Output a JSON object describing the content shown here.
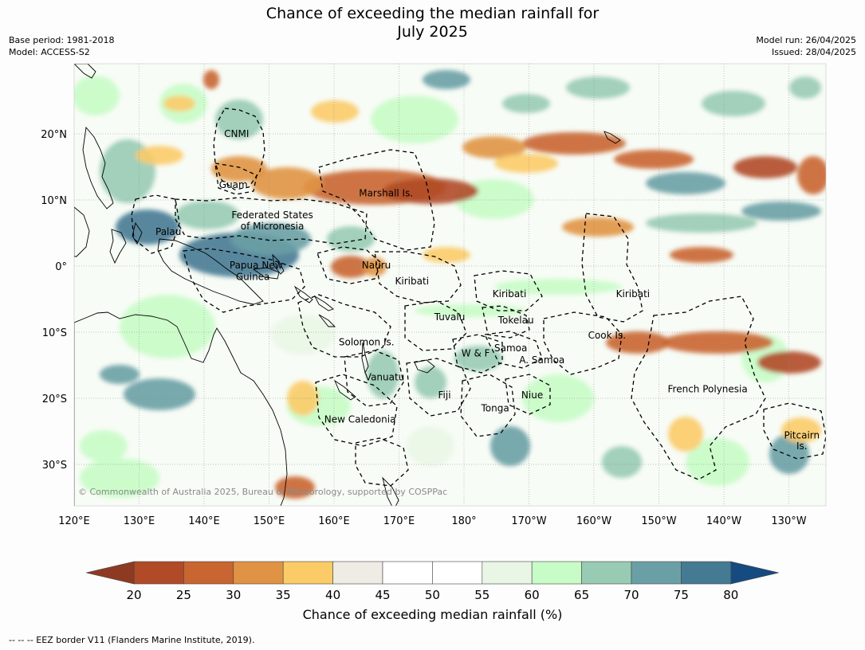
{
  "header": {
    "title_line1": "Chance of exceeding the median rainfall for",
    "title_line2": "July 2025",
    "base_period": "Base period: 1981-2018",
    "model": "Model: ACCESS-S2",
    "model_run": "Model run: 26/04/2025",
    "issued": "Issued: 28/04/2025"
  },
  "map": {
    "lon_labels": [
      "120°E",
      "130°E",
      "140°E",
      "150°E",
      "160°E",
      "170°E",
      "180°",
      "170°W",
      "160°W",
      "150°W",
      "140°W",
      "130°W"
    ],
    "lat_labels": [
      "20°N",
      "10°N",
      "0°",
      "10°S",
      "20°S",
      "30°S"
    ],
    "copyright": "© Commonwealth of Australia 2025, Bureau of Meteorology, supported by COSPPac",
    "region_labels": [
      {
        "id": "cnmi",
        "text": "CNMI",
        "lon": 145,
        "lat": 20
      },
      {
        "id": "guam",
        "text": "Guam",
        "lon": 144.5,
        "lat": 12.3
      },
      {
        "id": "marshall",
        "text": "Marshall Is.",
        "lon": 168,
        "lat": 11
      },
      {
        "id": "fsm1",
        "text": "Federated States",
        "lon": 150.5,
        "lat": 7.7
      },
      {
        "id": "fsm2",
        "text": "of Micronesia",
        "lon": 150.5,
        "lat": 6
      },
      {
        "id": "palau",
        "text": "Palau",
        "lon": 134.5,
        "lat": 5.2
      },
      {
        "id": "png1",
        "text": "Papua New",
        "lon": 148,
        "lat": 0.1
      },
      {
        "id": "png2",
        "text": "Guinea",
        "lon": 147.5,
        "lat": -1.6
      },
      {
        "id": "nauru",
        "text": "Nauru",
        "lon": 166.5,
        "lat": 0.1
      },
      {
        "id": "kiribati-w",
        "text": "Kiribati",
        "lon": 172,
        "lat": -2.3
      },
      {
        "id": "kiribati-c",
        "text": "Kiribati",
        "lon": -173,
        "lat": -4.2
      },
      {
        "id": "kiribati-e",
        "text": "Kiribati",
        "lon": -154,
        "lat": -4.2
      },
      {
        "id": "tuvalu",
        "text": "Tuvalu",
        "lon": 177.8,
        "lat": -7.7
      },
      {
        "id": "tokelau",
        "text": "Tokelau",
        "lon": -172,
        "lat": -8.2
      },
      {
        "id": "cook",
        "text": "Cook Is.",
        "lon": -158,
        "lat": -10.5
      },
      {
        "id": "solomon",
        "text": "Solomon Is.",
        "lon": 165,
        "lat": -11.5
      },
      {
        "id": "samoa",
        "text": "Samoa",
        "lon": -172.8,
        "lat": -12.4
      },
      {
        "id": "wf",
        "text": "W & F",
        "lon": -178.2,
        "lat": -13.2
      },
      {
        "id": "asamoa",
        "text": "A. Samoa",
        "lon": -168,
        "lat": -14.2
      },
      {
        "id": "vanuatu",
        "text": "Vanuatu",
        "lon": 167.8,
        "lat": -16.8
      },
      {
        "id": "frpoly",
        "text": "French Polynesia",
        "lon": -142.5,
        "lat": -18.6
      },
      {
        "id": "fiji",
        "text": "Fiji",
        "lon": 177,
        "lat": -19.5
      },
      {
        "id": "niue",
        "text": "Niue",
        "lon": -169.5,
        "lat": -19.5
      },
      {
        "id": "tonga",
        "text": "Tonga",
        "lon": -175.2,
        "lat": -21.5
      },
      {
        "id": "newcal",
        "text": "New Caledonia",
        "lon": 164,
        "lat": -23.2
      },
      {
        "id": "pitcairn1",
        "text": "Pitcairn",
        "lon": -128,
        "lat": -25.6
      },
      {
        "id": "pitcairn2",
        "text": "Is.",
        "lon": -128,
        "lat": -27.2
      }
    ]
  },
  "colorbar": {
    "ticks": [
      "20",
      "25",
      "30",
      "35",
      "40",
      "45",
      "50",
      "55",
      "60",
      "65",
      "70",
      "75",
      "80"
    ],
    "label": "Chance of exceeding median rainfall (%)",
    "under_color": "#8e3a22",
    "over_color": "#154b80",
    "colors": [
      "#b04a27",
      "#c96530",
      "#e09344",
      "#fbcb68",
      "#efebe5",
      "#ffffff",
      "#ffffff",
      "#e9f6e6",
      "#c8fcc6",
      "#98cbb4",
      "#6aa0a5",
      "#457a93"
    ]
  },
  "footnote": "--  --  -- EEZ border V11 (Flanders Marine Institute, 2019)."
}
